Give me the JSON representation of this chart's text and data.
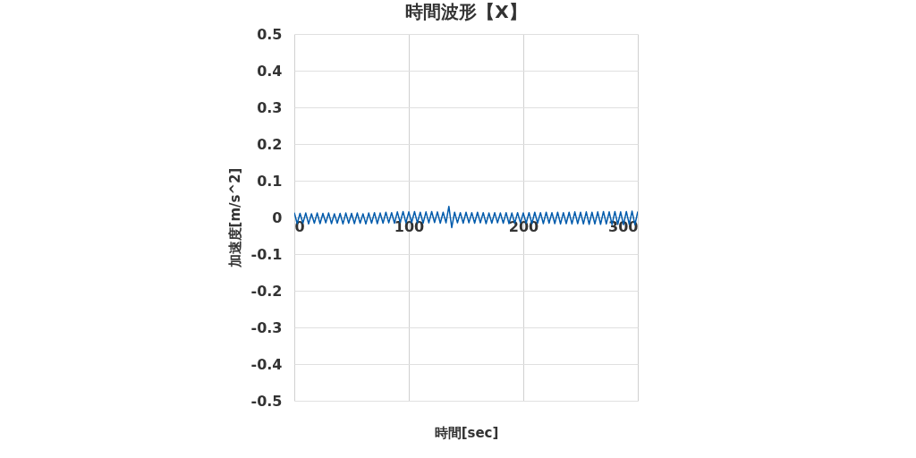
{
  "chart_data": {
    "type": "line",
    "title": "時間波形【X】",
    "xlabel": "時間[sec]",
    "ylabel": "加速度[m/s^2]",
    "x": [
      0,
      2.5,
      5,
      7.5,
      10,
      12.5,
      15,
      17.5,
      20,
      22.5,
      25,
      27.5,
      30,
      32.5,
      35,
      37.5,
      40,
      42.5,
      45,
      47.5,
      50,
      52.5,
      55,
      57.5,
      60,
      62.5,
      65,
      67.5,
      70,
      72.5,
      75,
      77.5,
      80,
      82.5,
      85,
      87.5,
      90,
      92.5,
      95,
      97.5,
      100,
      102.5,
      105,
      107.5,
      110,
      112.5,
      115,
      117.5,
      120,
      122.5,
      125,
      127.5,
      130,
      132.5,
      135,
      137.5,
      140,
      142.5,
      145,
      147.5,
      150,
      152.5,
      155,
      157.5,
      160,
      162.5,
      165,
      167.5,
      170,
      172.5,
      175,
      177.5,
      180,
      182.5,
      185,
      187.5,
      190,
      192.5,
      195,
      197.5,
      200,
      202.5,
      205,
      207.5,
      210,
      212.5,
      215,
      217.5,
      220,
      222.5,
      225,
      227.5,
      230,
      232.5,
      235,
      237.5,
      240,
      242.5,
      245,
      247.5,
      250,
      252.5,
      255,
      257.5,
      260,
      262.5,
      265,
      267.5,
      270,
      272.5,
      275,
      277.5,
      280,
      282.5,
      285,
      287.5,
      290,
      292.5,
      295,
      297.5,
      300
    ],
    "series": [
      {
        "color": "#005bac",
        "values": [
          0.013,
          -0.017,
          0.011,
          -0.016,
          0.012,
          -0.018,
          0.01,
          -0.016,
          0.012,
          -0.017,
          0.011,
          -0.015,
          0.012,
          -0.017,
          0.01,
          -0.016,
          0.011,
          -0.018,
          0.012,
          -0.016,
          0.011,
          -0.017,
          0.012,
          -0.016,
          0.01,
          -0.018,
          0.012,
          -0.016,
          0.013,
          -0.017,
          0.012,
          -0.016,
          0.014,
          -0.015,
          0.013,
          -0.016,
          0.015,
          -0.014,
          0.016,
          -0.015,
          0.015,
          -0.014,
          0.016,
          -0.015,
          0.014,
          -0.016,
          0.015,
          -0.015,
          0.016,
          -0.014,
          0.015,
          -0.016,
          0.014,
          -0.015,
          0.03,
          -0.028,
          0.014,
          -0.015,
          0.013,
          -0.016,
          0.014,
          -0.015,
          0.013,
          -0.016,
          0.014,
          -0.015,
          0.013,
          -0.017,
          0.012,
          -0.016,
          0.013,
          -0.015,
          0.012,
          -0.016,
          0.013,
          -0.017,
          0.012,
          -0.016,
          0.013,
          -0.015,
          0.012,
          -0.016,
          0.013,
          -0.017,
          0.014,
          -0.016,
          0.013,
          -0.017,
          0.014,
          -0.016,
          0.013,
          -0.017,
          0.014,
          -0.018,
          0.013,
          -0.017,
          0.014,
          -0.018,
          0.015,
          -0.017,
          0.014,
          -0.018,
          0.015,
          -0.019,
          0.014,
          -0.018,
          0.015,
          -0.019,
          0.016,
          -0.018,
          0.015,
          -0.02,
          0.016,
          -0.019,
          0.015,
          -0.02,
          0.016,
          -0.019,
          0.017,
          -0.02,
          0.016
        ]
      }
    ],
    "xlim": [
      0,
      300
    ],
    "xticks": [
      0,
      100,
      200,
      300
    ],
    "ylim": [
      -0.5,
      0.5
    ],
    "yticks": [
      -0.5,
      -0.4,
      -0.3,
      -0.2,
      -0.1,
      0,
      0.1,
      0.2,
      0.3,
      0.4,
      0.5
    ],
    "grid": true
  }
}
